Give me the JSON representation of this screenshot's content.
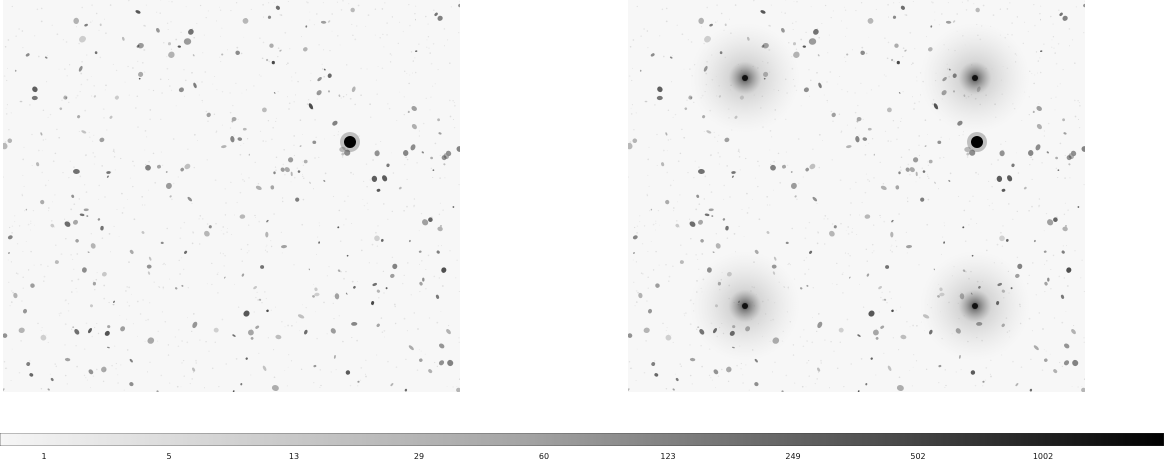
{
  "image_type": "Astronomical deep-field comparison, grayscale (inverted)",
  "panels": [
    {
      "id": "left",
      "depiction": "star field with faint galaxies and one bright compact star"
    },
    {
      "id": "right",
      "depiction": "same field with four added extended halo sources plus the compact star"
    }
  ],
  "colorbar": {
    "scale": "log",
    "colormap": "white to black (gray_r)",
    "tick_labels": [
      "1",
      "5",
      "13",
      "29",
      "60",
      "123",
      "249",
      "502",
      "1002"
    ]
  }
}
